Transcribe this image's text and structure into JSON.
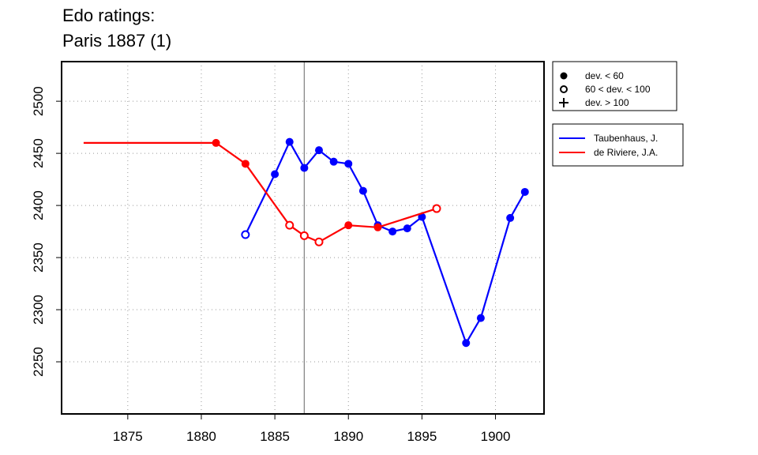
{
  "chart_data": {
    "type": "line",
    "title": "Edo ratings:",
    "subtitle": "Paris 1887 (1)",
    "xlabel": "",
    "ylabel": "",
    "xlim": [
      1870.5,
      1903.3
    ],
    "ylim": [
      2200,
      2538
    ],
    "x_ticks": [
      1875,
      1880,
      1885,
      1890,
      1895,
      1900
    ],
    "y_ticks": [
      2250,
      2300,
      2350,
      2400,
      2450,
      2500
    ],
    "grid": true,
    "reference_x": 1887,
    "legend_markers": [
      {
        "symbol": "filled-circle",
        "label": "dev. < 60"
      },
      {
        "symbol": "open-circle",
        "label": "60 < dev. < 100"
      },
      {
        "symbol": "plus",
        "label": "dev. > 100"
      }
    ],
    "legend_placement": "right, outside plot",
    "series": [
      {
        "name": "Taubenhaus, J.",
        "color": "#0000ff",
        "points": [
          {
            "x": 1883,
            "y": 2372,
            "marker": "open"
          },
          {
            "x": 1885,
            "y": 2430,
            "marker": "filled"
          },
          {
            "x": 1886,
            "y": 2461,
            "marker": "filled"
          },
          {
            "x": 1887,
            "y": 2436,
            "marker": "filled"
          },
          {
            "x": 1888,
            "y": 2453,
            "marker": "filled"
          },
          {
            "x": 1889,
            "y": 2442,
            "marker": "filled"
          },
          {
            "x": 1890,
            "y": 2440,
            "marker": "filled"
          },
          {
            "x": 1891,
            "y": 2414,
            "marker": "filled"
          },
          {
            "x": 1892,
            "y": 2381,
            "marker": "filled"
          },
          {
            "x": 1893,
            "y": 2375,
            "marker": "filled"
          },
          {
            "x": 1894,
            "y": 2378,
            "marker": "filled"
          },
          {
            "x": 1895,
            "y": 2389,
            "marker": "filled"
          },
          {
            "x": 1898,
            "y": 2268,
            "marker": "filled"
          },
          {
            "x": 1899,
            "y": 2292,
            "marker": "filled"
          },
          {
            "x": 1901,
            "y": 2388,
            "marker": "filled"
          },
          {
            "x": 1902,
            "y": 2413,
            "marker": "filled"
          }
        ]
      },
      {
        "name": "de Riviere, J.A.",
        "color": "#ff0000",
        "line_start": {
          "x": 1872,
          "y": 2460
        },
        "points": [
          {
            "x": 1881,
            "y": 2460,
            "marker": "filled"
          },
          {
            "x": 1883,
            "y": 2440,
            "marker": "filled"
          },
          {
            "x": 1886,
            "y": 2381,
            "marker": "open"
          },
          {
            "x": 1887,
            "y": 2371,
            "marker": "open"
          },
          {
            "x": 1888,
            "y": 2365,
            "marker": "open"
          },
          {
            "x": 1890,
            "y": 2381,
            "marker": "filled"
          },
          {
            "x": 1892,
            "y": 2379,
            "marker": "filled"
          },
          {
            "x": 1896,
            "y": 2397,
            "marker": "open"
          }
        ]
      }
    ]
  }
}
